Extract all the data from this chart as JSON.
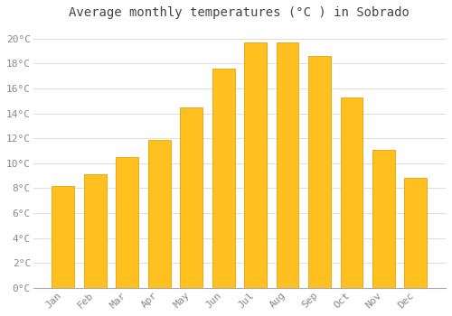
{
  "title": "Average monthly temperatures (°C ) in Sobrado",
  "months": [
    "Jan",
    "Feb",
    "Mar",
    "Apr",
    "May",
    "Jun",
    "Jul",
    "Aug",
    "Sep",
    "Oct",
    "Nov",
    "Dec"
  ],
  "temperatures": [
    8.2,
    9.1,
    10.5,
    11.9,
    14.5,
    17.6,
    19.7,
    19.7,
    18.6,
    15.3,
    11.1,
    8.8
  ],
  "bar_color": "#FFC020",
  "bar_edge_color": "#E8A000",
  "background_color": "#FFFFFF",
  "grid_color": "#DDDDDD",
  "ytick_labels": [
    "0°C",
    "2°C",
    "4°C",
    "6°C",
    "8°C",
    "10°C",
    "12°C",
    "14°C",
    "16°C",
    "18°C",
    "20°C"
  ],
  "ytick_values": [
    0,
    2,
    4,
    6,
    8,
    10,
    12,
    14,
    16,
    18,
    20
  ],
  "ylim": [
    0,
    21
  ],
  "title_fontsize": 10,
  "tick_fontsize": 8,
  "tick_color": "#888888",
  "title_color": "#444444"
}
